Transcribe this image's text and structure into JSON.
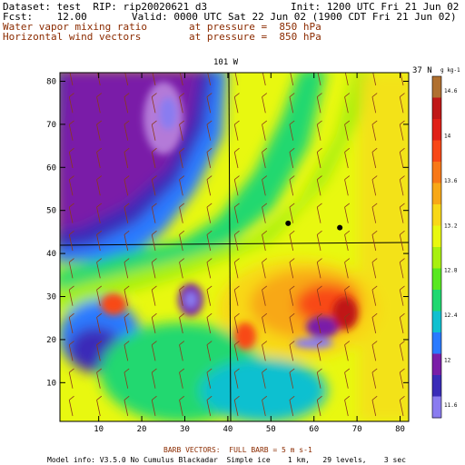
{
  "header": {
    "dataset_line": "Dataset: test  RIP: rip20020621 d3",
    "init_line": "Init: 1200 UTC Fri 21 Jun 02",
    "fcst_line": "Fcst:    12.00",
    "valid_line": "Valid: 0000 UTC Sat 22 Jun 02 (1900 CDT Fri 21 Jun 02)",
    "field1_label": "Water vapor mixing ratio",
    "field1_pressure": "at pressure =  850 hPa",
    "field2_label": "Horizontal wind vectors",
    "field2_pressure": "at pressure =  850 hPa"
  },
  "colors": {
    "header_primary": "#000000",
    "header_secondary": "#8b2b00",
    "barb": "#8b3a1a",
    "map_line": "#000000"
  },
  "chart_data": {
    "type": "heatmap",
    "field": "Water vapor mixing ratio",
    "units": "g kg-1",
    "x_range": [
      1,
      82
    ],
    "y_range": [
      1,
      82
    ],
    "x_ticks": [
      10,
      20,
      30,
      40,
      50,
      60,
      70,
      80
    ],
    "y_ticks": [
      10,
      20,
      30,
      40,
      50,
      60,
      70,
      80
    ],
    "top_labels": [
      "101 W",
      "37 N"
    ],
    "colorbar": {
      "unit_label": "g kg-1",
      "ticks": [
        "14.6",
        "14",
        "13.6",
        "13.2",
        "12.8",
        "12.4",
        "12",
        "11.6"
      ]
    },
    "colorbar_levels": [
      "#8a7cf0",
      "#3a2cb8",
      "#7a1ea8",
      "#2a7aff",
      "#10c0d0",
      "#20d870",
      "#58e820",
      "#a8f010",
      "#e8f810",
      "#f8d818",
      "#f8a818",
      "#f87818",
      "#f84818",
      "#e02018",
      "#c01818",
      "#b07030"
    ],
    "wind_barbs": {
      "full_barb": "5 m s-1",
      "count_x": 13,
      "count_y": 13,
      "nominal_speed": "5 m s-1",
      "nominal_direction_from": "SSW"
    },
    "features": [
      {
        "type": "dry_core",
        "x": 8,
        "y": 73
      },
      {
        "type": "dry_region",
        "x": 15,
        "y": 50
      },
      {
        "type": "moist_region",
        "x": 70,
        "y": 28
      },
      {
        "type": "station",
        "x": 54,
        "y": 47
      },
      {
        "type": "station",
        "x": 66,
        "y": 46
      }
    ]
  },
  "footer": {
    "barb_legend": "BARB VECTORS:  FULL BARB = 5 m s-1",
    "model_info": "Model info: V3.5.0 No Cumulus Blackadar  Simple ice    1 km,   29 levels,    3 sec"
  }
}
